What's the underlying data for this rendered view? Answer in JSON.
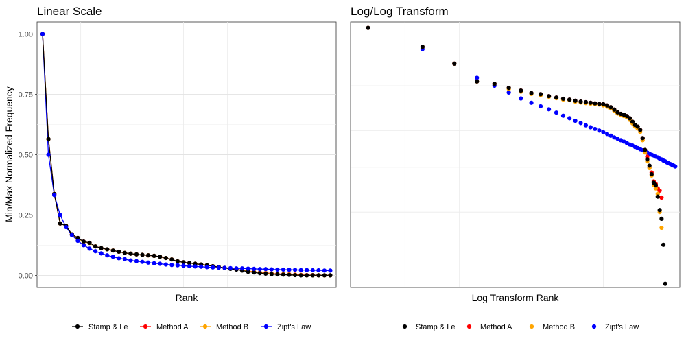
{
  "chart_data": [
    {
      "type": "line",
      "title": "Linear Scale",
      "xlabel": "Rank",
      "ylabel": "Min/Max Normalized Frequency",
      "x": [
        1,
        2,
        3,
        4,
        5,
        6,
        7,
        8,
        9,
        10,
        11,
        12,
        13,
        14,
        15,
        16,
        17,
        18,
        19,
        20,
        21,
        22,
        23,
        24,
        25,
        26,
        27,
        28,
        29,
        30,
        31,
        32,
        33,
        34,
        35,
        36,
        37,
        38,
        39,
        40,
        41,
        42,
        43,
        44,
        45,
        46,
        47,
        48,
        49,
        50
      ],
      "ylim": [
        0,
        1
      ],
      "yticks": [
        "0.00",
        "0.25",
        "0.50",
        "0.75",
        "1.00"
      ],
      "grid": true,
      "legend": "bottom",
      "series": [
        {
          "name": "Stamp & Le",
          "color": "#000000",
          "values": [
            1.0,
            0.565,
            0.337,
            0.215,
            0.205,
            0.17,
            0.155,
            0.14,
            0.135,
            0.12,
            0.113,
            0.108,
            0.103,
            0.098,
            0.093,
            0.09,
            0.087,
            0.085,
            0.083,
            0.081,
            0.077,
            0.072,
            0.066,
            0.058,
            0.054,
            0.051,
            0.048,
            0.045,
            0.042,
            0.038,
            0.035,
            0.031,
            0.027,
            0.024,
            0.02,
            0.015,
            0.012,
            0.009,
            0.007,
            0.005,
            0.004,
            0.003,
            0.002,
            0.001,
            0.0,
            0.0,
            0.0,
            0.0,
            0.0,
            0.0
          ]
        },
        {
          "name": "Method A",
          "color": "#ff0000",
          "values": [
            1.0,
            0.565,
            0.337,
            0.215,
            0.205,
            0.17,
            0.155,
            0.14,
            0.135,
            0.12,
            0.113,
            0.108,
            0.103,
            0.098,
            0.093,
            0.09,
            0.087,
            0.085,
            0.083,
            0.081,
            0.077,
            0.072,
            0.066,
            0.058,
            0.054,
            0.051,
            0.048,
            0.045,
            0.042,
            0.038,
            0.035,
            0.031,
            0.028,
            0.025,
            0.022,
            0.018,
            0.015,
            0.012,
            0.01,
            0.008,
            0.006,
            0.005,
            0.004,
            0.003,
            0.002,
            0.001,
            0.001,
            0.0,
            0.0,
            0.0
          ]
        },
        {
          "name": "Method B",
          "color": "#ffa500",
          "values": [
            1.0,
            0.565,
            0.337,
            0.215,
            0.205,
            0.168,
            0.153,
            0.139,
            0.134,
            0.12,
            0.113,
            0.108,
            0.103,
            0.098,
            0.093,
            0.09,
            0.087,
            0.085,
            0.083,
            0.081,
            0.077,
            0.072,
            0.066,
            0.058,
            0.054,
            0.051,
            0.048,
            0.045,
            0.042,
            0.038,
            0.035,
            0.031,
            0.028,
            0.025,
            0.021,
            0.017,
            0.014,
            0.011,
            0.009,
            0.007,
            0.005,
            0.004,
            0.003,
            0.002,
            0.001,
            0.0,
            0.0,
            0.0,
            0.0,
            0.0
          ]
        },
        {
          "name": "Zipf's Law",
          "color": "#0000ff",
          "values": [
            1.0,
            0.5,
            0.333,
            0.25,
            0.2,
            0.167,
            0.143,
            0.125,
            0.111,
            0.1,
            0.091,
            0.083,
            0.077,
            0.071,
            0.067,
            0.062,
            0.059,
            0.056,
            0.053,
            0.05,
            0.048,
            0.045,
            0.043,
            0.042,
            0.04,
            0.038,
            0.037,
            0.036,
            0.034,
            0.033,
            0.032,
            0.031,
            0.03,
            0.029,
            0.029,
            0.028,
            0.027,
            0.026,
            0.026,
            0.025,
            0.024,
            0.024,
            0.023,
            0.023,
            0.022,
            0.022,
            0.021,
            0.021,
            0.02,
            0.02
          ]
        }
      ]
    },
    {
      "type": "scatter",
      "title": "Log/Log Transform",
      "xlabel": "Log Transform Rank",
      "ylabel": "",
      "xscale": "log",
      "yscale": "log",
      "grid": true,
      "legend": "bottom",
      "series": [
        {
          "name": "Stamp & Le",
          "color": "#000000",
          "points": [
            [
              1,
              1.0
            ],
            [
              2,
              0.91
            ],
            [
              3,
              0.837
            ],
            [
              4,
              0.766
            ],
            [
              5,
              0.757
            ],
            [
              6,
              0.742
            ],
            [
              7,
              0.732
            ],
            [
              8,
              0.723
            ],
            [
              9,
              0.719
            ],
            [
              10,
              0.712
            ],
            [
              11,
              0.707
            ],
            [
              12,
              0.703
            ],
            [
              13,
              0.7
            ],
            [
              14,
              0.696
            ],
            [
              15,
              0.693
            ],
            [
              16,
              0.691
            ],
            [
              17,
              0.689
            ],
            [
              18,
              0.687
            ],
            [
              19,
              0.685
            ],
            [
              20,
              0.684
            ],
            [
              21,
              0.68
            ],
            [
              22,
              0.674
            ],
            [
              23,
              0.666
            ],
            [
              24,
              0.657
            ],
            [
              25,
              0.652
            ],
            [
              26,
              0.649
            ],
            [
              27,
              0.645
            ],
            [
              28,
              0.638
            ],
            [
              29,
              0.627
            ],
            [
              30,
              0.617
            ],
            [
              31,
              0.612
            ],
            [
              32,
              0.602
            ],
            [
              33,
              0.578
            ],
            [
              34,
              0.545
            ],
            [
              35,
              0.52
            ],
            [
              36,
              0.504
            ],
            [
              37,
              0.483
            ],
            [
              38,
              0.463
            ],
            [
              39,
              0.457
            ],
            [
              40,
              0.432
            ],
            [
              41,
              0.404
            ],
            [
              42,
              0.387
            ],
            [
              43,
              0.34
            ],
            [
              44,
              0.28
            ]
          ]
        },
        {
          "name": "Method A",
          "color": "#ff0000",
          "points": [
            [
              1,
              1.0
            ],
            [
              2,
              0.91
            ],
            [
              3,
              0.837
            ],
            [
              4,
              0.766
            ],
            [
              5,
              0.757
            ],
            [
              6,
              0.742
            ],
            [
              7,
              0.732
            ],
            [
              8,
              0.723
            ],
            [
              9,
              0.719
            ],
            [
              10,
              0.712
            ],
            [
              11,
              0.707
            ],
            [
              12,
              0.703
            ],
            [
              13,
              0.7
            ],
            [
              14,
              0.696
            ],
            [
              15,
              0.693
            ],
            [
              16,
              0.691
            ],
            [
              17,
              0.689
            ],
            [
              18,
              0.687
            ],
            [
              19,
              0.685
            ],
            [
              20,
              0.684
            ],
            [
              21,
              0.68
            ],
            [
              22,
              0.674
            ],
            [
              23,
              0.666
            ],
            [
              24,
              0.657
            ],
            [
              25,
              0.652
            ],
            [
              26,
              0.649
            ],
            [
              27,
              0.645
            ],
            [
              28,
              0.638
            ],
            [
              29,
              0.627
            ],
            [
              30,
              0.617
            ],
            [
              31,
              0.612
            ],
            [
              32,
              0.602
            ],
            [
              33,
              0.578
            ],
            [
              34,
              0.545
            ],
            [
              35,
              0.527
            ],
            [
              36,
              0.5
            ],
            [
              37,
              0.487
            ],
            [
              38,
              0.466
            ],
            [
              39,
              0.46
            ],
            [
              40,
              0.45
            ],
            [
              41,
              0.445
            ],
            [
              42,
              0.43
            ]
          ]
        },
        {
          "name": "Method B",
          "color": "#ffa500",
          "points": [
            [
              1,
              1.0
            ],
            [
              2,
              0.91
            ],
            [
              3,
              0.837
            ],
            [
              4,
              0.766
            ],
            [
              5,
              0.757
            ],
            [
              6,
              0.738
            ],
            [
              7,
              0.728
            ],
            [
              8,
              0.72
            ],
            [
              9,
              0.716
            ],
            [
              10,
              0.71
            ],
            [
              11,
              0.705
            ],
            [
              12,
              0.7
            ],
            [
              13,
              0.698
            ],
            [
              14,
              0.693
            ],
            [
              15,
              0.69
            ],
            [
              16,
              0.688
            ],
            [
              17,
              0.686
            ],
            [
              18,
              0.684
            ],
            [
              19,
              0.683
            ],
            [
              20,
              0.68
            ],
            [
              21,
              0.676
            ],
            [
              22,
              0.67
            ],
            [
              23,
              0.662
            ],
            [
              24,
              0.653
            ],
            [
              25,
              0.648
            ],
            [
              26,
              0.645
            ],
            [
              27,
              0.641
            ],
            [
              28,
              0.633
            ],
            [
              29,
              0.622
            ],
            [
              30,
              0.612
            ],
            [
              31,
              0.606
            ],
            [
              32,
              0.596
            ],
            [
              33,
              0.572
            ],
            [
              34,
              0.538
            ],
            [
              35,
              0.515
            ],
            [
              36,
              0.498
            ],
            [
              37,
              0.48
            ],
            [
              38,
              0.458
            ],
            [
              39,
              0.45
            ],
            [
              40,
              0.438
            ],
            [
              41,
              0.4
            ],
            [
              42,
              0.37
            ]
          ]
        },
        {
          "name": "Zipf's Law",
          "color": "#0000ff",
          "points": [
            [
              1,
              1.0
            ],
            [
              2,
              0.9
            ],
            [
              3,
              0.837
            ],
            [
              4,
              0.78
            ],
            [
              5,
              0.75
            ],
            [
              6,
              0.725
            ],
            [
              7,
              0.704
            ],
            [
              8,
              0.689
            ],
            [
              9,
              0.677
            ],
            [
              10,
              0.667
            ],
            [
              11,
              0.656
            ],
            [
              12,
              0.646
            ],
            [
              13,
              0.638
            ],
            [
              14,
              0.63
            ],
            [
              15,
              0.623
            ],
            [
              16,
              0.616
            ],
            [
              17,
              0.61
            ],
            [
              18,
              0.605
            ],
            [
              19,
              0.6
            ],
            [
              20,
              0.595
            ],
            [
              21,
              0.59
            ],
            [
              22,
              0.585
            ],
            [
              23,
              0.58
            ],
            [
              24,
              0.576
            ],
            [
              25,
              0.572
            ],
            [
              26,
              0.568
            ],
            [
              27,
              0.564
            ],
            [
              28,
              0.56
            ],
            [
              29,
              0.557
            ],
            [
              30,
              0.553
            ],
            [
              31,
              0.55
            ],
            [
              32,
              0.547
            ],
            [
              33,
              0.544
            ],
            [
              34,
              0.541
            ],
            [
              35,
              0.538
            ],
            [
              36,
              0.535
            ],
            [
              37,
              0.532
            ],
            [
              38,
              0.53
            ],
            [
              39,
              0.527
            ],
            [
              40,
              0.525
            ],
            [
              41,
              0.522
            ],
            [
              42,
              0.52
            ],
            [
              43,
              0.517
            ],
            [
              44,
              0.515
            ],
            [
              45,
              0.512
            ],
            [
              46,
              0.51
            ],
            [
              47,
              0.508
            ],
            [
              48,
              0.506
            ],
            [
              49,
              0.504
            ],
            [
              50,
              0.502
            ]
          ]
        }
      ]
    }
  ],
  "legend_items": [
    "Stamp & Le",
    "Method A",
    "Method B",
    "Zipf's Law"
  ]
}
